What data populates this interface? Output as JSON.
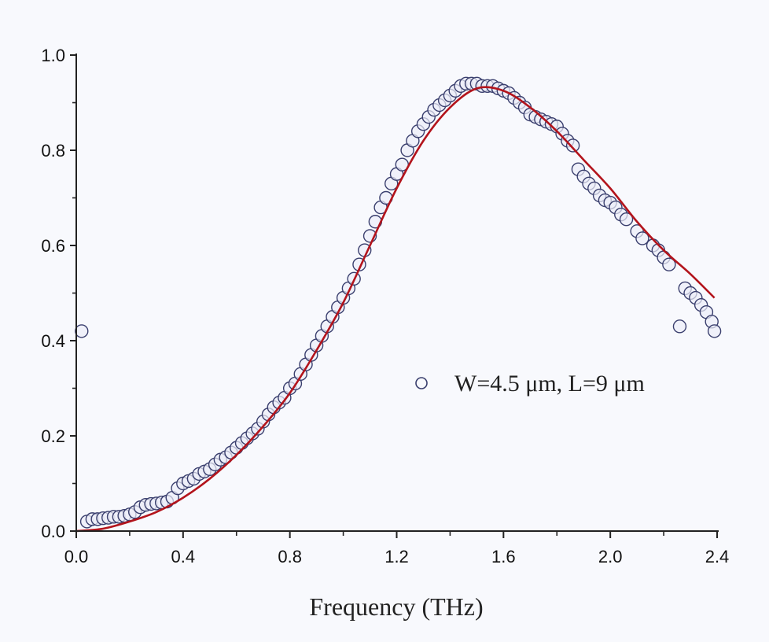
{
  "chart_data": {
    "type": "scatter",
    "title": "",
    "xlabel": "Frequency (THz)",
    "ylabel": "",
    "xlim": [
      0.0,
      2.4
    ],
    "ylim": [
      0.0,
      1.0
    ],
    "xticks": [
      "0.0",
      "0.4",
      "0.8",
      "1.2",
      "1.6",
      "2.0",
      "2.4"
    ],
    "yticks": [
      "0.0",
      "0.2",
      "0.4",
      "0.6",
      "0.8",
      "1.0"
    ],
    "grid": false,
    "legend_position": "center-right",
    "colors": {
      "marker_stroke": "#3a3f6e",
      "marker_fill": "#eceef8",
      "fit": "#b3141c"
    },
    "series": [
      {
        "name": "W=4.5 μm, L=9 μm",
        "kind": "scatter-open-circle",
        "x": [
          0.02,
          0.04,
          0.06,
          0.08,
          0.1,
          0.12,
          0.14,
          0.16,
          0.18,
          0.2,
          0.22,
          0.24,
          0.26,
          0.28,
          0.3,
          0.32,
          0.34,
          0.36,
          0.38,
          0.4,
          0.42,
          0.44,
          0.46,
          0.48,
          0.5,
          0.52,
          0.54,
          0.56,
          0.58,
          0.6,
          0.62,
          0.64,
          0.66,
          0.68,
          0.7,
          0.72,
          0.74,
          0.76,
          0.78,
          0.8,
          0.82,
          0.84,
          0.86,
          0.88,
          0.9,
          0.92,
          0.94,
          0.96,
          0.98,
          1.0,
          1.02,
          1.04,
          1.06,
          1.08,
          1.1,
          1.12,
          1.14,
          1.16,
          1.18,
          1.2,
          1.22,
          1.24,
          1.26,
          1.28,
          1.3,
          1.32,
          1.34,
          1.36,
          1.38,
          1.4,
          1.42,
          1.44,
          1.46,
          1.48,
          1.5,
          1.52,
          1.54,
          1.56,
          1.58,
          1.6,
          1.62,
          1.64,
          1.66,
          1.68,
          1.7,
          1.72,
          1.74,
          1.76,
          1.78,
          1.8,
          1.82,
          1.84,
          1.86,
          1.88,
          1.9,
          1.92,
          1.94,
          1.96,
          1.98,
          2.0,
          2.02,
          2.04,
          2.06,
          2.1,
          2.12,
          2.16,
          2.18,
          2.2,
          2.22,
          2.26,
          2.28,
          2.3,
          2.32,
          2.34,
          2.36,
          2.38,
          2.39
        ],
        "y": [
          0.42,
          0.02,
          0.025,
          0.025,
          0.027,
          0.028,
          0.03,
          0.03,
          0.032,
          0.035,
          0.04,
          0.05,
          0.055,
          0.057,
          0.058,
          0.06,
          0.062,
          0.07,
          0.09,
          0.1,
          0.105,
          0.11,
          0.12,
          0.125,
          0.13,
          0.14,
          0.15,
          0.155,
          0.165,
          0.175,
          0.185,
          0.195,
          0.205,
          0.215,
          0.23,
          0.245,
          0.26,
          0.27,
          0.28,
          0.3,
          0.31,
          0.33,
          0.35,
          0.37,
          0.39,
          0.41,
          0.43,
          0.45,
          0.47,
          0.49,
          0.51,
          0.53,
          0.56,
          0.59,
          0.62,
          0.65,
          0.68,
          0.7,
          0.73,
          0.75,
          0.77,
          0.8,
          0.82,
          0.84,
          0.855,
          0.87,
          0.885,
          0.895,
          0.905,
          0.915,
          0.925,
          0.935,
          0.94,
          0.94,
          0.94,
          0.935,
          0.935,
          0.935,
          0.93,
          0.925,
          0.92,
          0.91,
          0.9,
          0.89,
          0.875,
          0.87,
          0.865,
          0.86,
          0.855,
          0.85,
          0.835,
          0.82,
          0.81,
          0.76,
          0.745,
          0.73,
          0.72,
          0.705,
          0.695,
          0.69,
          0.68,
          0.665,
          0.655,
          0.63,
          0.615,
          0.6,
          0.59,
          0.575,
          0.56,
          0.43,
          0.51,
          0.5,
          0.49,
          0.475,
          0.46,
          0.44,
          0.42
        ]
      },
      {
        "kind": "line-fit",
        "x": [
          0.0,
          0.1,
          0.2,
          0.3,
          0.4,
          0.5,
          0.6,
          0.7,
          0.8,
          0.9,
          1.0,
          1.1,
          1.2,
          1.3,
          1.4,
          1.5,
          1.6,
          1.7,
          1.8,
          1.9,
          2.0,
          2.1,
          2.2,
          2.3,
          2.39
        ],
        "y": [
          0.0,
          0.005,
          0.02,
          0.04,
          0.07,
          0.11,
          0.16,
          0.22,
          0.29,
          0.38,
          0.48,
          0.6,
          0.72,
          0.82,
          0.89,
          0.93,
          0.925,
          0.89,
          0.84,
          0.78,
          0.72,
          0.65,
          0.59,
          0.54,
          0.49
        ]
      }
    ]
  }
}
